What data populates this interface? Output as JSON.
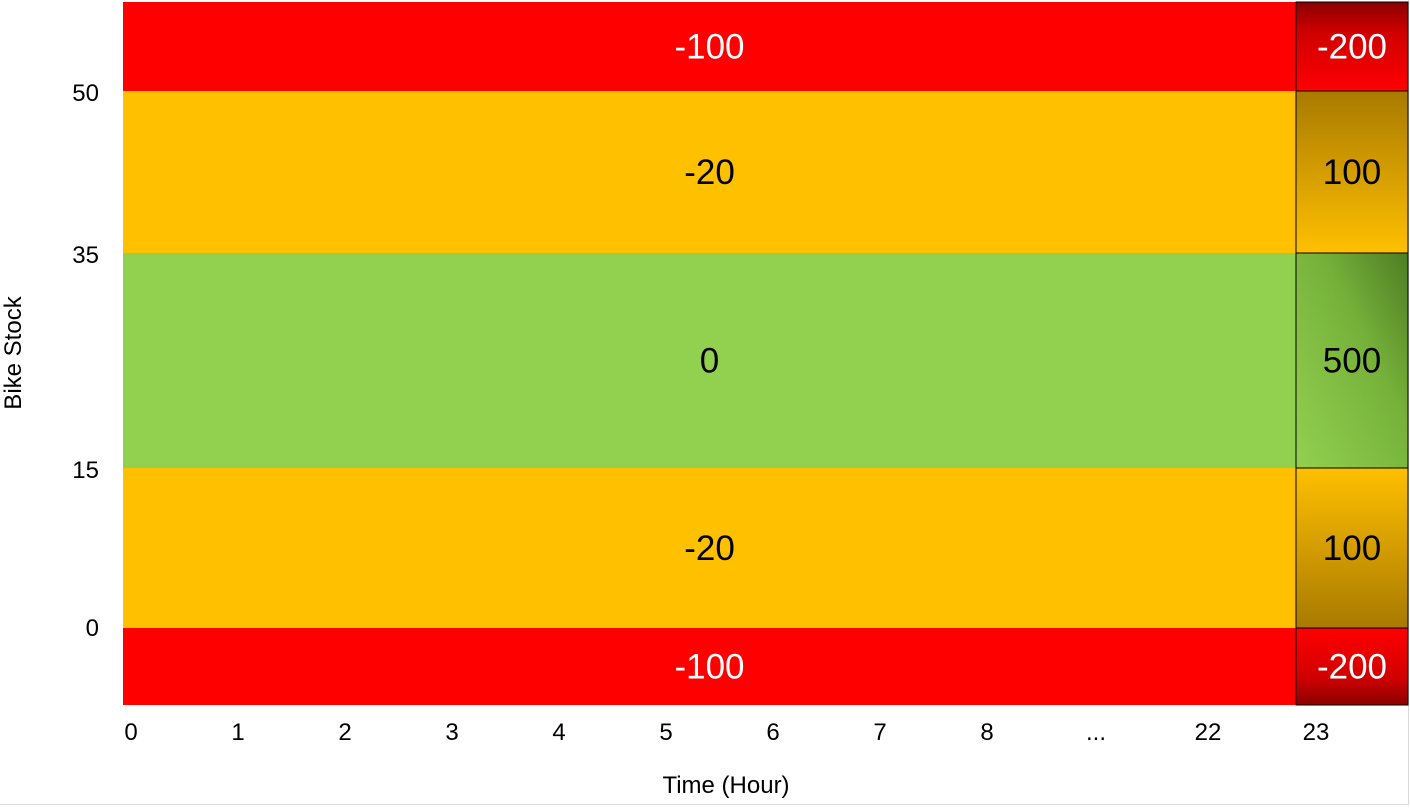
{
  "chart_data": {
    "type": "heatmap",
    "title": "",
    "xlabel": "Time (Hour)",
    "ylabel": "Bike Stock",
    "x_ticks": [
      "0",
      "1",
      "2",
      "3",
      "4",
      "5",
      "6",
      "7",
      "8",
      "...",
      "22",
      "23"
    ],
    "y_ticks": [
      "50",
      "35",
      "15",
      "0"
    ],
    "columns": [
      "0-22",
      "23"
    ],
    "rows": [
      {
        "range": "above 50",
        "values": [
          -100,
          -200
        ]
      },
      {
        "range": "35-50",
        "values": [
          -20,
          100
        ]
      },
      {
        "range": "15-35",
        "values": [
          0,
          500
        ]
      },
      {
        "range": "0-15",
        "values": [
          -20,
          100
        ]
      },
      {
        "range": "below 0",
        "values": [
          -100,
          -200
        ]
      }
    ],
    "colors": {
      "red": "#ff0000",
      "orange": "#ffc000",
      "green": "#92d050",
      "dark_red": "#8b0000",
      "dark_orange": "#a87a00",
      "dark_green": "#4e7d24"
    }
  }
}
